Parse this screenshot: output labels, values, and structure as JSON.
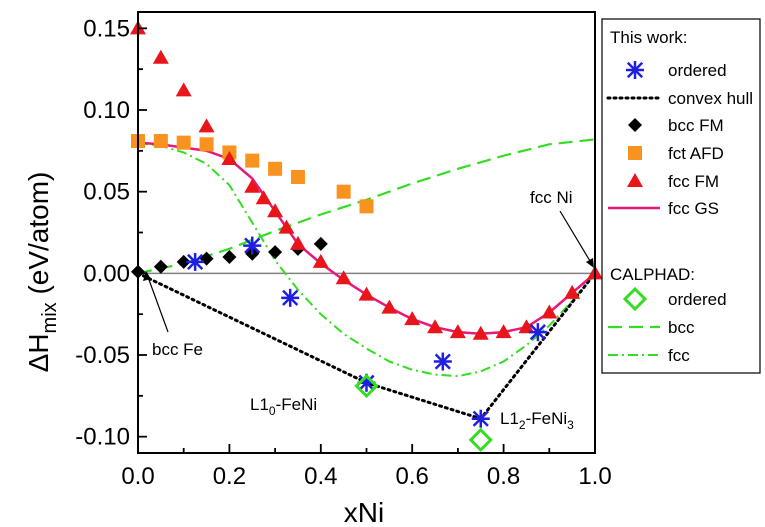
{
  "chart_data": {
    "type": "scatter",
    "xlabel": "xNi",
    "ylabel_main": "ΔH",
    "ylabel_sub": "mix",
    "ylabel_unit": " (eV/atom)",
    "xlim": [
      0.0,
      1.0
    ],
    "ylim": [
      -0.11,
      0.16
    ],
    "x_ticks": [
      0.0,
      0.1,
      0.2,
      0.3,
      0.4,
      0.5,
      0.6,
      0.7,
      0.8,
      0.9,
      1.0
    ],
    "x_tick_labels": [
      "0.0",
      "0.2",
      "0.4",
      "0.6",
      "0.8",
      "1.0"
    ],
    "x_tick_label_values": [
      0.0,
      0.2,
      0.4,
      0.6,
      0.8,
      1.0
    ],
    "y_ticks": [
      -0.1,
      -0.075,
      -0.05,
      -0.025,
      0.0,
      0.025,
      0.05,
      0.075,
      0.1,
      0.125,
      0.15
    ],
    "y_tick_labels": [
      "-0.10",
      "-0.05",
      "0.00",
      "0.05",
      "0.10",
      "0.15"
    ],
    "y_tick_label_values": [
      -0.1,
      -0.05,
      0.0,
      0.05,
      0.1,
      0.15
    ],
    "zero_line": true,
    "grid": false,
    "legend_position": "right",
    "legend": {
      "group1_title": "This work:",
      "group2_title": "CALPHAD:",
      "items1": [
        "ordered",
        "convex hull",
        "bcc FM",
        "fct AFD",
        "fcc FM",
        "fcc GS"
      ],
      "items2": [
        "ordered",
        "bcc",
        "fcc"
      ]
    },
    "annotations": {
      "bcc_fe": "bcc Fe",
      "fcc_ni": "fcc Ni",
      "l10_main": "L1",
      "l10_sub": "0",
      "l10_tail": "-FeNi",
      "l12_main": "L1",
      "l12_sub": "2",
      "l12_tail": "-FeNi",
      "l12_sub2": "3"
    },
    "colors": {
      "ordered_this": "#1f1fe0",
      "convex_hull": "#000000",
      "bcc_fm": "#000000",
      "fct_afd": "#f7931e",
      "fcc_fm": "#e8151b",
      "fcc_gs": "#e6197a",
      "calphad_ordered": "#33dd22",
      "calphad_bcc": "#33dd22",
      "calphad_fcc": "#33dd22",
      "zero_line": "#808080"
    },
    "series": [
      {
        "name": "ordered",
        "group": "This work",
        "marker": "asterisk",
        "x": [
          0.125,
          0.25,
          0.333,
          0.5,
          0.667,
          0.75,
          0.875
        ],
        "y": [
          0.007,
          0.017,
          -0.015,
          -0.067,
          -0.054,
          -0.089,
          -0.036
        ]
      },
      {
        "name": "convex hull",
        "group": "This work",
        "line": "dotted",
        "x": [
          0.0,
          0.5,
          0.75,
          1.0
        ],
        "y": [
          0.0,
          -0.067,
          -0.089,
          0.0
        ]
      },
      {
        "name": "bcc FM",
        "group": "This work",
        "marker": "diamond",
        "x": [
          0.0,
          0.05,
          0.1,
          0.15,
          0.2,
          0.25,
          0.3,
          0.35,
          0.4
        ],
        "y": [
          0.001,
          0.004,
          0.007,
          0.009,
          0.01,
          0.012,
          0.013,
          0.015,
          0.018
        ]
      },
      {
        "name": "fct AFD",
        "group": "This work",
        "marker": "square",
        "x": [
          0.0,
          0.05,
          0.1,
          0.15,
          0.2,
          0.25,
          0.3,
          0.35,
          0.45,
          0.5
        ],
        "y": [
          0.081,
          0.081,
          0.08,
          0.079,
          0.074,
          0.069,
          0.064,
          0.059,
          0.05,
          0.041
        ]
      },
      {
        "name": "fcc FM",
        "group": "This work",
        "marker": "triangle",
        "x": [
          0.0,
          0.05,
          0.1,
          0.15,
          0.2,
          0.25,
          0.275,
          0.3,
          0.325,
          0.35,
          0.4,
          0.45,
          0.5,
          0.55,
          0.6,
          0.65,
          0.7,
          0.75,
          0.8,
          0.85,
          0.9,
          0.95,
          1.0
        ],
        "y": [
          0.15,
          0.132,
          0.112,
          0.09,
          0.07,
          0.053,
          0.046,
          0.038,
          0.028,
          0.018,
          0.007,
          -0.003,
          -0.013,
          -0.021,
          -0.028,
          -0.033,
          -0.036,
          -0.037,
          -0.036,
          -0.033,
          -0.024,
          -0.012,
          0.0
        ]
      },
      {
        "name": "fcc GS",
        "group": "This work",
        "line": "solid",
        "x": [
          0.0,
          0.05,
          0.1,
          0.15,
          0.2,
          0.25,
          0.3,
          0.35,
          0.4,
          0.45,
          0.5,
          0.55,
          0.6,
          0.65,
          0.7,
          0.75,
          0.8,
          0.85,
          0.9,
          0.95,
          1.0
        ],
        "y": [
          0.08,
          0.079,
          0.077,
          0.075,
          0.07,
          0.058,
          0.038,
          0.018,
          0.006,
          -0.004,
          -0.013,
          -0.021,
          -0.028,
          -0.033,
          -0.036,
          -0.037,
          -0.036,
          -0.033,
          -0.024,
          -0.012,
          0.0
        ]
      },
      {
        "name": "ordered",
        "group": "CALPHAD",
        "marker": "open-diamond",
        "x": [
          0.5,
          0.75
        ],
        "y": [
          -0.069,
          -0.102
        ]
      },
      {
        "name": "bcc",
        "group": "CALPHAD",
        "line": "dashed",
        "x": [
          0.0,
          0.1,
          0.2,
          0.3,
          0.4,
          0.5,
          0.6,
          0.7,
          0.8,
          0.9,
          1.0
        ],
        "y": [
          0.0,
          0.006,
          0.015,
          0.026,
          0.036,
          0.045,
          0.055,
          0.064,
          0.072,
          0.079,
          0.082
        ]
      },
      {
        "name": "fcc",
        "group": "CALPHAD",
        "line": "dashdot",
        "x": [
          0.0,
          0.05,
          0.1,
          0.15,
          0.2,
          0.25,
          0.3,
          0.35,
          0.4,
          0.45,
          0.5,
          0.55,
          0.6,
          0.65,
          0.7,
          0.75,
          0.8,
          0.85,
          0.9,
          0.95,
          1.0
        ],
        "y": [
          0.08,
          0.078,
          0.074,
          0.067,
          0.054,
          0.031,
          0.008,
          -0.01,
          -0.025,
          -0.037,
          -0.046,
          -0.054,
          -0.059,
          -0.062,
          -0.063,
          -0.06,
          -0.054,
          -0.044,
          -0.032,
          -0.017,
          0.0
        ]
      }
    ]
  }
}
